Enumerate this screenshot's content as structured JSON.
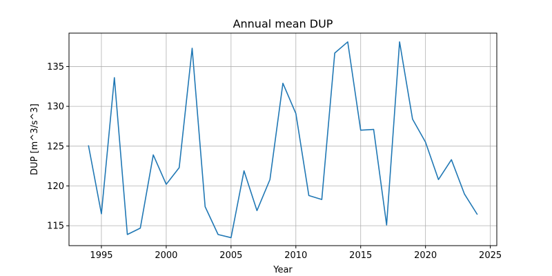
{
  "chart_data": {
    "type": "line",
    "title": "Annual mean DUP",
    "xlabel": "Year",
    "ylabel": "DUP [m^3/s^3]",
    "xlim": [
      1992.5,
      2025.5
    ],
    "ylim": [
      112.5,
      139.2
    ],
    "xticks": [
      1995,
      2000,
      2005,
      2010,
      2015,
      2020,
      2025
    ],
    "yticks": [
      115,
      120,
      125,
      130,
      135
    ],
    "grid": true,
    "series": [
      {
        "color": "#1f77b4",
        "x": [
          1994,
          1995,
          1996,
          1997,
          1998,
          1999,
          2000,
          2001,
          2002,
          2003,
          2004,
          2005,
          2006,
          2007,
          2008,
          2009,
          2010,
          2011,
          2012,
          2013,
          2014,
          2015,
          2016,
          2017,
          2018,
          2019,
          2020,
          2021,
          2022,
          2023,
          2024
        ],
        "y": [
          125.1,
          116.5,
          133.6,
          113.9,
          114.7,
          123.9,
          120.2,
          122.3,
          137.3,
          117.4,
          113.9,
          113.5,
          121.9,
          116.9,
          120.8,
          132.9,
          129.1,
          118.8,
          118.3,
          136.7,
          138.1,
          127.0,
          127.1,
          115.1,
          138.1,
          128.4,
          125.5,
          120.8,
          123.3,
          119.0,
          116.4
        ]
      }
    ]
  }
}
